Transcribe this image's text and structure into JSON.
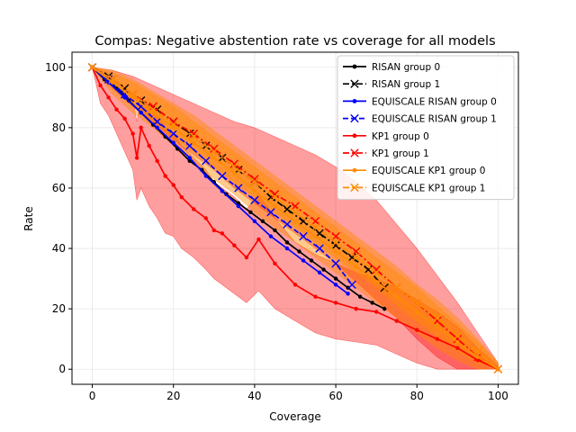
{
  "chart_data": {
    "type": "line",
    "title": "Compas: Negative abstention rate vs coverage for all models",
    "xlabel": "Coverage",
    "ylabel": "Rate",
    "xlim": [
      -5,
      105
    ],
    "ylim": [
      -5,
      105
    ],
    "xticks": [
      0,
      20,
      40,
      60,
      80,
      100
    ],
    "yticks": [
      0,
      20,
      40,
      60,
      80,
      100
    ],
    "grid": true,
    "legend_position": "top-right",
    "series": [
      {
        "name": "RISAN group 0",
        "color": "#000000",
        "linestyle": "solid",
        "marker": "dot",
        "x": [
          0,
          3,
          6,
          9,
          12,
          15,
          18,
          21,
          24,
          27,
          30,
          33,
          36,
          39,
          42,
          45,
          48,
          51,
          54,
          57,
          60,
          63,
          66,
          69,
          72
        ],
        "y": [
          100,
          96,
          93,
          89,
          85,
          81,
          77,
          73,
          69,
          66,
          62,
          58,
          55,
          52,
          49,
          46,
          42,
          39,
          36,
          33,
          30,
          27,
          24,
          22,
          20
        ],
        "band": null
      },
      {
        "name": "RISAN group 1",
        "color": "#000000",
        "linestyle": "dashdot",
        "marker": "x",
        "x": [
          0,
          4,
          8,
          12,
          16,
          20,
          24,
          28,
          32,
          36,
          40,
          44,
          48,
          52,
          56,
          60,
          64,
          68,
          72
        ],
        "y": [
          100,
          97,
          93,
          89,
          86,
          82,
          78,
          74,
          70,
          66,
          62,
          57,
          53,
          49,
          45,
          41,
          37,
          33,
          27
        ],
        "band": null
      },
      {
        "name": "EQUISCALE RISAN group 0",
        "color": "#0000ff",
        "linestyle": "solid",
        "marker": "dot",
        "x": [
          0,
          4,
          8,
          12,
          16,
          20,
          24,
          28,
          32,
          36,
          40,
          44,
          48,
          52,
          56,
          60,
          63
        ],
        "y": [
          100,
          95,
          90,
          85,
          80,
          75,
          70,
          64,
          59,
          54,
          49,
          44,
          40,
          36,
          32,
          28,
          25
        ],
        "band": null
      },
      {
        "name": "EQUISCALE RISAN group 1",
        "color": "#0000ff",
        "linestyle": "dashed",
        "marker": "x",
        "x": [
          0,
          4,
          8,
          12,
          16,
          20,
          24,
          28,
          32,
          36,
          40,
          44,
          48,
          52,
          56,
          60,
          64
        ],
        "y": [
          100,
          96,
          91,
          87,
          82,
          78,
          74,
          69,
          64,
          60,
          56,
          52,
          48,
          44,
          40,
          35,
          28
        ],
        "band": null
      },
      {
        "name": "KP1 group 0",
        "color": "#ff0000",
        "linestyle": "solid",
        "marker": "dot",
        "x": [
          0,
          2,
          4,
          6,
          8,
          10,
          11,
          12,
          14,
          16,
          18,
          20,
          22,
          25,
          28,
          30,
          32,
          35,
          38,
          41,
          45,
          50,
          55,
          60,
          65,
          70,
          75,
          80,
          85,
          90,
          95,
          100
        ],
        "y": [
          100,
          94,
          90,
          86,
          83,
          78,
          70,
          80,
          74,
          69,
          64,
          61,
          57,
          53,
          50,
          46,
          45,
          41,
          37,
          43,
          35,
          28,
          24,
          22,
          20,
          19,
          16,
          13,
          10,
          7,
          3,
          0
        ],
        "band": {
          "lower": [
            100,
            88,
            84,
            78,
            72,
            66,
            56,
            60,
            54,
            50,
            45,
            44,
            40,
            37,
            33,
            30,
            28,
            25,
            22,
            26,
            20,
            16,
            12,
            10,
            9,
            8,
            5,
            2,
            0,
            0,
            0,
            0
          ],
          "upper": [
            100,
            99,
            96,
            93,
            91,
            89,
            82,
            90,
            87,
            84,
            80,
            78,
            74,
            70,
            66,
            62,
            60,
            57,
            53,
            58,
            50,
            42,
            38,
            35,
            32,
            30,
            27,
            23,
            19,
            14,
            7,
            1
          ]
        }
      },
      {
        "name": "KP1 group 1",
        "color": "#ff0000",
        "linestyle": "dashdot",
        "marker": "x",
        "x": [
          0,
          5,
          10,
          15,
          20,
          25,
          30,
          35,
          40,
          45,
          50,
          55,
          60,
          65,
          70,
          75,
          80,
          85,
          90,
          95,
          100
        ],
        "y": [
          100,
          96,
          91,
          87,
          82,
          78,
          73,
          68,
          63,
          58,
          54,
          49,
          44,
          39,
          33,
          27,
          22,
          16,
          10,
          4,
          0
        ],
        "band": {
          "lower": [
            100,
            93,
            87,
            82,
            76,
            71,
            66,
            60,
            55,
            50,
            45,
            40,
            35,
            29,
            23,
            17,
            10,
            4,
            0,
            0,
            0
          ],
          "upper": [
            100,
            99,
            97,
            94,
            91,
            88,
            85,
            82,
            80,
            77,
            74,
            71,
            67,
            62,
            56,
            48,
            40,
            31,
            22,
            12,
            2
          ]
        }
      },
      {
        "name": "EQUISCALE KP1 group 0",
        "color": "#ff8c00",
        "linestyle": "solid",
        "marker": "dot",
        "x": [
          0,
          5,
          10,
          15,
          20,
          25,
          30,
          35,
          40,
          45,
          50,
          55,
          60,
          65,
          70,
          75,
          80,
          85,
          90,
          95,
          100
        ],
        "y": [
          100,
          95,
          90,
          85,
          80,
          75,
          70,
          65,
          59,
          54,
          49,
          44,
          39,
          34,
          29,
          24,
          19,
          14,
          9,
          4,
          0
        ],
        "band": {
          "lower": [
            100,
            91,
            85,
            80,
            74,
            69,
            63,
            58,
            52,
            47,
            42,
            37,
            32,
            27,
            22,
            17,
            12,
            7,
            3,
            0,
            0
          ],
          "upper": [
            100,
            98,
            95,
            91,
            87,
            82,
            77,
            72,
            67,
            62,
            57,
            52,
            47,
            42,
            37,
            32,
            27,
            21,
            15,
            9,
            2
          ]
        }
      },
      {
        "name": "EQUISCALE KP1 group 1",
        "color": "#ff8c00",
        "linestyle": "dashdot",
        "marker": "x",
        "x": [
          0,
          5,
          10,
          15,
          20,
          25,
          30,
          35,
          40,
          45,
          50,
          55,
          60,
          65,
          70,
          75,
          80,
          85,
          90,
          95,
          100
        ],
        "y": [
          100,
          96,
          91,
          86,
          81,
          77,
          72,
          67,
          62,
          57,
          52,
          47,
          42,
          37,
          32,
          27,
          22,
          17,
          11,
          6,
          0
        ],
        "band": {
          "lower": [
            100,
            93,
            87,
            82,
            77,
            72,
            67,
            62,
            57,
            52,
            47,
            42,
            37,
            32,
            27,
            21,
            16,
            11,
            6,
            2,
            0
          ],
          "upper": [
            100,
            99,
            96,
            92,
            88,
            84,
            79,
            74,
            69,
            64,
            59,
            54,
            49,
            44,
            39,
            34,
            28,
            23,
            17,
            10,
            2
          ]
        }
      }
    ]
  }
}
